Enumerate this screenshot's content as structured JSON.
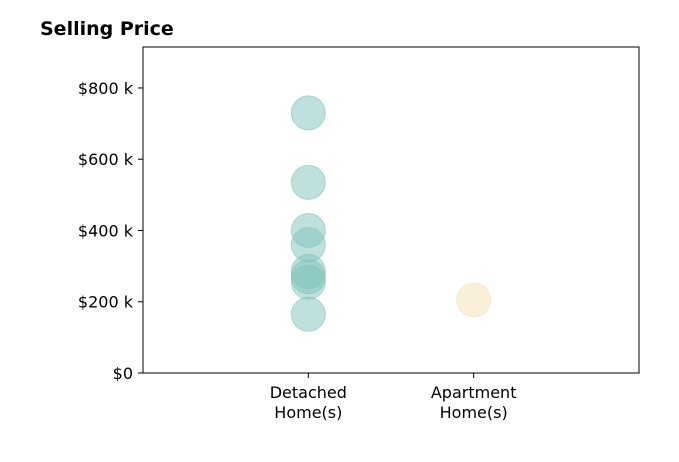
{
  "chart_data": {
    "type": "scatter",
    "title": "Selling Price",
    "xlabel": "",
    "ylabel": "",
    "categories": [
      {
        "id": "detached",
        "lines": [
          "Detached",
          "Home(s)"
        ]
      },
      {
        "id": "apartment",
        "lines": [
          "Apartment",
          "Home(s)"
        ]
      }
    ],
    "yticks": [
      {
        "value": 0,
        "label": "$0"
      },
      {
        "value": 200000,
        "label": "$200 k"
      },
      {
        "value": 400000,
        "label": "$400 k"
      },
      {
        "value": 600000,
        "label": "$600 k"
      },
      {
        "value": 800000,
        "label": "$800 k"
      }
    ],
    "ylim": [
      0,
      915000
    ],
    "xlim": [
      0,
      3
    ],
    "grid": false,
    "series": [
      {
        "category": "detached",
        "color": "#80c4bb",
        "values": [
          730000,
          535000,
          400000,
          360000,
          285000,
          270000,
          255000,
          165000
        ]
      },
      {
        "category": "apartment",
        "color": "#f5e2b3",
        "values": [
          205000
        ]
      }
    ]
  }
}
